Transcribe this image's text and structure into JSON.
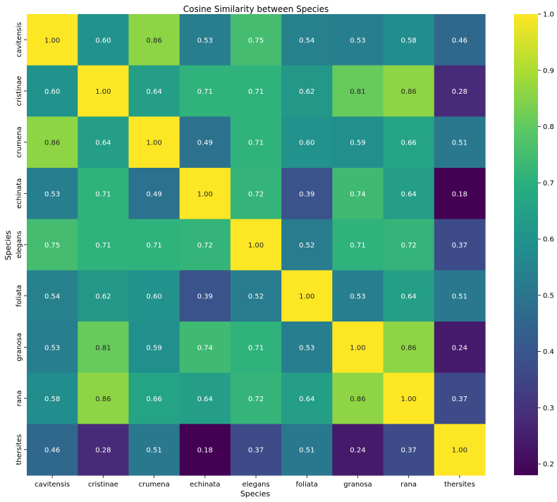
{
  "chart_data": {
    "type": "heatmap",
    "title": "Cosine Similarity between Species",
    "xlabel": "Species",
    "ylabel": "Species",
    "categories": [
      "cavitensis",
      "cristinae",
      "crumena",
      "echinata",
      "elegans",
      "foliata",
      "granosa",
      "rana",
      "thersites"
    ],
    "values": [
      [
        1.0,
        0.6,
        0.86,
        0.53,
        0.75,
        0.54,
        0.53,
        0.58,
        0.46
      ],
      [
        0.6,
        1.0,
        0.64,
        0.71,
        0.71,
        0.62,
        0.81,
        0.86,
        0.28
      ],
      [
        0.86,
        0.64,
        1.0,
        0.49,
        0.71,
        0.6,
        0.59,
        0.66,
        0.51
      ],
      [
        0.53,
        0.71,
        0.49,
        1.0,
        0.72,
        0.39,
        0.74,
        0.64,
        0.18
      ],
      [
        0.75,
        0.71,
        0.71,
        0.72,
        1.0,
        0.52,
        0.71,
        0.72,
        0.37
      ],
      [
        0.54,
        0.62,
        0.6,
        0.39,
        0.52,
        1.0,
        0.53,
        0.64,
        0.51
      ],
      [
        0.53,
        0.81,
        0.59,
        0.74,
        0.71,
        0.53,
        1.0,
        0.86,
        0.24
      ],
      [
        0.58,
        0.86,
        0.66,
        0.64,
        0.72,
        0.64,
        0.86,
        1.0,
        0.37
      ],
      [
        0.46,
        0.28,
        0.51,
        0.18,
        0.37,
        0.51,
        0.24,
        0.37,
        1.0
      ]
    ],
    "value_format": "2 decimals",
    "colormap": "viridis",
    "color_range": [
      0.18,
      1.0
    ],
    "colorbar_ticks": [
      "0.2",
      "0.3",
      "0.4",
      "0.5",
      "0.6",
      "0.7",
      "0.8",
      "0.9",
      "1.0"
    ],
    "colorbar_tick_values": [
      0.2,
      0.3,
      0.4,
      0.5,
      0.6,
      0.7,
      0.8,
      0.9,
      1.0
    ],
    "grid": false,
    "legend": "colorbar-right"
  }
}
